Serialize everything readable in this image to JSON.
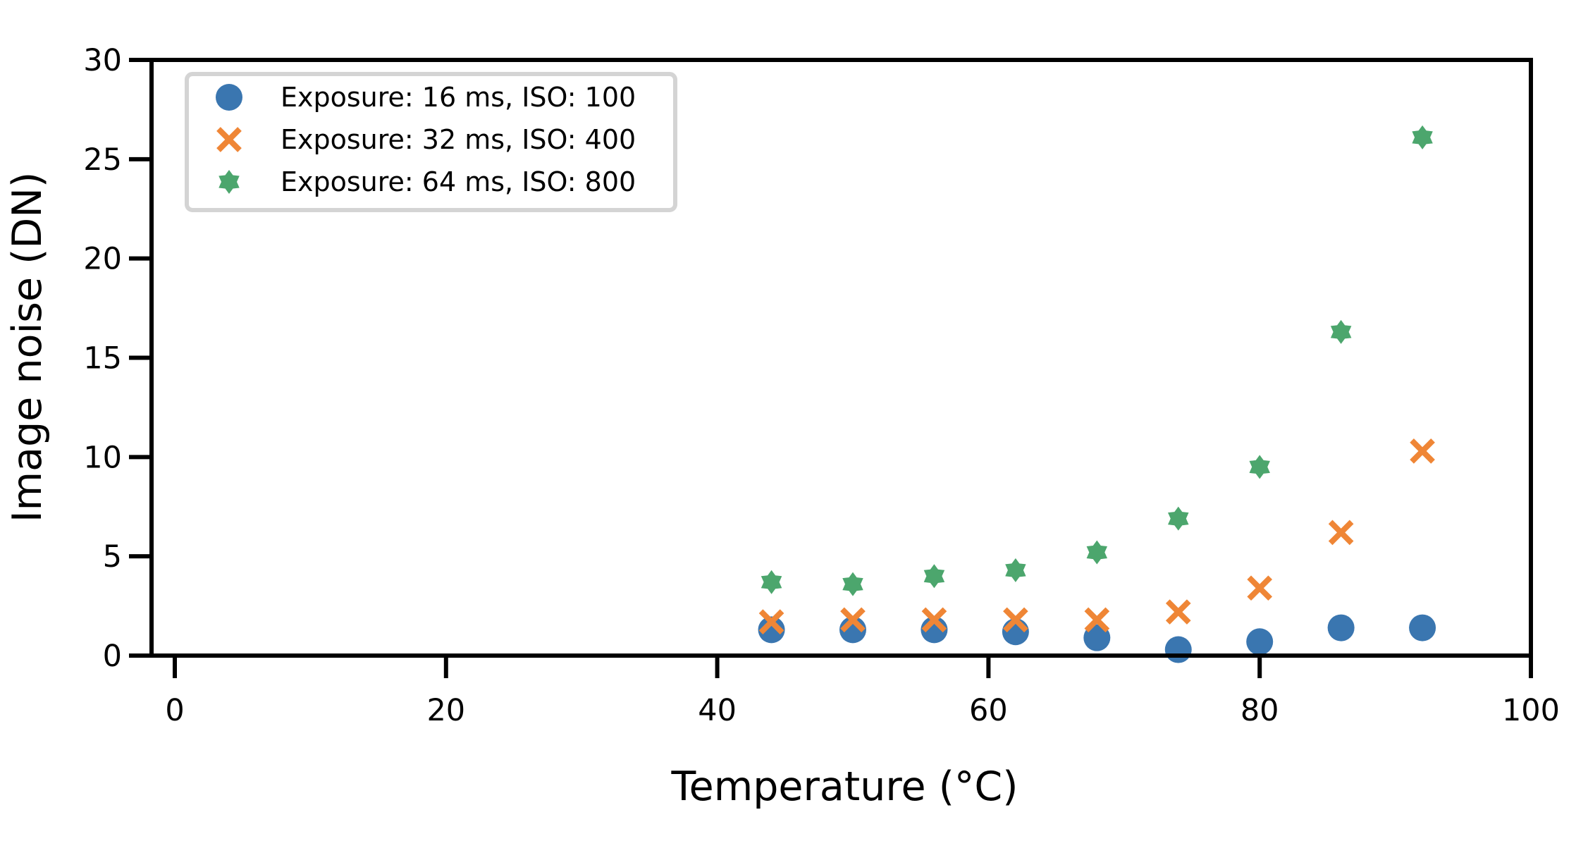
{
  "chart_data": {
    "type": "scatter",
    "xlabel": "Temperature (°C)",
    "ylabel": "Image noise (DN)",
    "xlim": [
      0,
      100
    ],
    "ylim": [
      0,
      30
    ],
    "x_ticks": [
      "0",
      "20",
      "40",
      "60",
      "80",
      "100"
    ],
    "y_ticks": [
      "0",
      "5",
      "10",
      "15",
      "20",
      "25",
      "30"
    ],
    "grid": false,
    "legend_position": "top-left",
    "x": [
      44,
      50,
      56,
      62,
      68,
      74,
      80,
      86,
      92
    ],
    "series": [
      {
        "name": "Exposure: 16 ms, ISO: 100",
        "marker": "circle",
        "color": "#3a76b0",
        "values": [
          1.3,
          1.3,
          1.3,
          1.2,
          0.9,
          0.3,
          0.7,
          1.4,
          1.4
        ]
      },
      {
        "name": "Exposure: 32 ms, ISO: 400",
        "marker": "x",
        "color": "#ef8636",
        "values": [
          1.7,
          1.8,
          1.8,
          1.8,
          1.8,
          2.2,
          3.4,
          6.2,
          10.3
        ]
      },
      {
        "name": "Exposure: 64 ms, ISO: 800",
        "marker": "star",
        "color": "#4ca66d",
        "values": [
          3.7,
          3.6,
          4.0,
          4.3,
          5.2,
          6.9,
          9.5,
          16.3,
          26.1
        ]
      }
    ]
  }
}
